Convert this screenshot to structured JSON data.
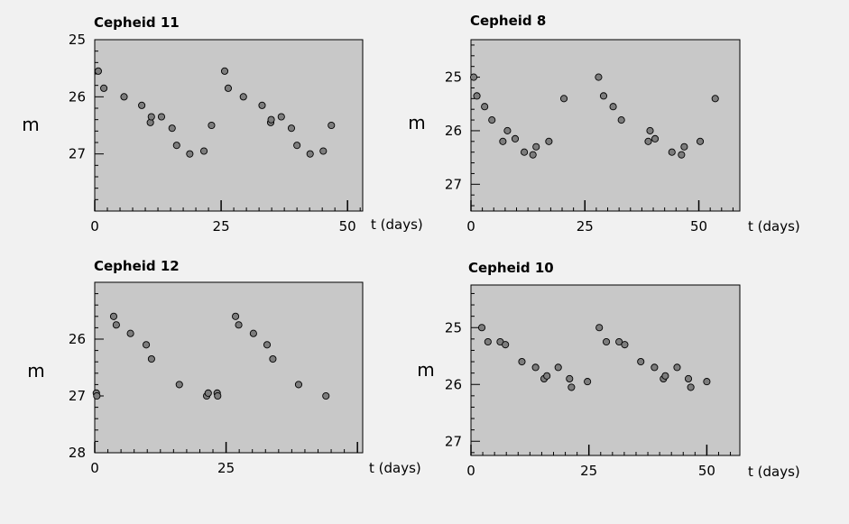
{
  "chart_data": [
    {
      "type": "scatter",
      "title": "Cepheid 11",
      "xlabel": "t (days)",
      "ylabel": "m",
      "xlim": [
        0,
        53
      ],
      "ylim": [
        25,
        28
      ],
      "y_inverted": true,
      "xticks": [
        0,
        25,
        50
      ],
      "yticks": [
        25,
        26,
        27
      ],
      "grid": false,
      "points": [
        {
          "x": 0.7,
          "y": 25.55
        },
        {
          "x": 1.8,
          "y": 25.85
        },
        {
          "x": 5.8,
          "y": 26.0
        },
        {
          "x": 9.3,
          "y": 26.15
        },
        {
          "x": 11.0,
          "y": 26.45
        },
        {
          "x": 11.2,
          "y": 26.35
        },
        {
          "x": 13.2,
          "y": 26.35
        },
        {
          "x": 15.3,
          "y": 26.55
        },
        {
          "x": 16.2,
          "y": 26.85
        },
        {
          "x": 18.8,
          "y": 27.0
        },
        {
          "x": 21.6,
          "y": 26.95
        },
        {
          "x": 23.1,
          "y": 26.5
        },
        {
          "x": 25.7,
          "y": 25.55
        },
        {
          "x": 26.4,
          "y": 25.85
        },
        {
          "x": 29.4,
          "y": 26.0
        },
        {
          "x": 33.1,
          "y": 26.15
        },
        {
          "x": 34.8,
          "y": 26.45
        },
        {
          "x": 34.9,
          "y": 26.4
        },
        {
          "x": 36.9,
          "y": 26.35
        },
        {
          "x": 38.9,
          "y": 26.55
        },
        {
          "x": 40.0,
          "y": 26.85
        },
        {
          "x": 42.6,
          "y": 27.0
        },
        {
          "x": 45.2,
          "y": 26.95
        },
        {
          "x": 46.8,
          "y": 26.5
        }
      ]
    },
    {
      "type": "scatter",
      "title": "Cepheid 8",
      "xlabel": "t (days)",
      "ylabel": "m",
      "xlim": [
        0,
        59
      ],
      "ylim": [
        24.3,
        27.5
      ],
      "y_inverted": true,
      "xticks": [
        0,
        25,
        50
      ],
      "yticks": [
        25,
        26,
        27
      ],
      "grid": false,
      "points": [
        {
          "x": 0.6,
          "y": 25.0
        },
        {
          "x": 1.3,
          "y": 25.35
        },
        {
          "x": 3.0,
          "y": 25.55
        },
        {
          "x": 4.6,
          "y": 25.8
        },
        {
          "x": 7.0,
          "y": 26.2
        },
        {
          "x": 8.0,
          "y": 26.0
        },
        {
          "x": 9.7,
          "y": 26.15
        },
        {
          "x": 11.7,
          "y": 26.4
        },
        {
          "x": 13.6,
          "y": 26.45
        },
        {
          "x": 14.3,
          "y": 26.3
        },
        {
          "x": 17.1,
          "y": 26.2
        },
        {
          "x": 20.4,
          "y": 25.4
        },
        {
          "x": 28.0,
          "y": 25.0
        },
        {
          "x": 29.1,
          "y": 25.35
        },
        {
          "x": 31.2,
          "y": 25.55
        },
        {
          "x": 33.0,
          "y": 25.8
        },
        {
          "x": 38.9,
          "y": 26.2
        },
        {
          "x": 39.3,
          "y": 26.0
        },
        {
          "x": 40.4,
          "y": 26.15
        },
        {
          "x": 44.1,
          "y": 26.4
        },
        {
          "x": 46.2,
          "y": 26.45
        },
        {
          "x": 46.8,
          "y": 26.3
        },
        {
          "x": 50.3,
          "y": 26.2
        },
        {
          "x": 53.6,
          "y": 25.4
        }
      ]
    },
    {
      "type": "scatter",
      "title": "Cepheid 12",
      "xlabel": "t (days)",
      "ylabel": "m",
      "xlim": [
        0,
        51
      ],
      "ylim": [
        25,
        28
      ],
      "y_inverted": true,
      "xticks": [
        0,
        25
      ],
      "yticks": [
        26,
        27,
        28
      ],
      "grid": false,
      "points": [
        {
          "x": 0.3,
          "y": 26.95
        },
        {
          "x": 0.4,
          "y": 27.0
        },
        {
          "x": 3.6,
          "y": 25.6
        },
        {
          "x": 4.1,
          "y": 25.75
        },
        {
          "x": 6.8,
          "y": 25.9
        },
        {
          "x": 9.8,
          "y": 26.1
        },
        {
          "x": 10.8,
          "y": 26.35
        },
        {
          "x": 16.1,
          "y": 26.8
        },
        {
          "x": 21.3,
          "y": 27.0
        },
        {
          "x": 21.6,
          "y": 26.95
        },
        {
          "x": 23.3,
          "y": 26.95
        },
        {
          "x": 23.4,
          "y": 27.0
        },
        {
          "x": 26.8,
          "y": 25.6
        },
        {
          "x": 27.4,
          "y": 25.75
        },
        {
          "x": 30.2,
          "y": 25.9
        },
        {
          "x": 32.8,
          "y": 26.1
        },
        {
          "x": 33.9,
          "y": 26.35
        },
        {
          "x": 38.8,
          "y": 26.8
        },
        {
          "x": 44.0,
          "y": 27.0
        }
      ]
    },
    {
      "type": "scatter",
      "title": "Cepheid 10",
      "xlabel": "t (days)",
      "ylabel": "m",
      "xlim": [
        0,
        57
      ],
      "ylim": [
        24.25,
        27.25
      ],
      "y_inverted": true,
      "xticks": [
        0,
        25,
        50
      ],
      "yticks": [
        25,
        26,
        27
      ],
      "grid": false,
      "points": [
        {
          "x": 2.3,
          "y": 25.0
        },
        {
          "x": 3.6,
          "y": 25.25
        },
        {
          "x": 6.2,
          "y": 25.25
        },
        {
          "x": 7.3,
          "y": 25.3
        },
        {
          "x": 10.8,
          "y": 25.6
        },
        {
          "x": 13.7,
          "y": 25.7
        },
        {
          "x": 15.5,
          "y": 25.9
        },
        {
          "x": 16.1,
          "y": 25.85
        },
        {
          "x": 18.5,
          "y": 25.7
        },
        {
          "x": 20.9,
          "y": 25.9
        },
        {
          "x": 21.3,
          "y": 26.05
        },
        {
          "x": 24.7,
          "y": 25.95
        },
        {
          "x": 27.2,
          "y": 25.0
        },
        {
          "x": 28.7,
          "y": 25.25
        },
        {
          "x": 31.4,
          "y": 25.25
        },
        {
          "x": 32.6,
          "y": 25.3
        },
        {
          "x": 36.0,
          "y": 25.6
        },
        {
          "x": 38.9,
          "y": 25.7
        },
        {
          "x": 40.8,
          "y": 25.9
        },
        {
          "x": 41.2,
          "y": 25.85
        },
        {
          "x": 43.7,
          "y": 25.7
        },
        {
          "x": 46.1,
          "y": 25.9
        },
        {
          "x": 46.6,
          "y": 26.05
        },
        {
          "x": 50.0,
          "y": 25.95
        }
      ]
    }
  ]
}
